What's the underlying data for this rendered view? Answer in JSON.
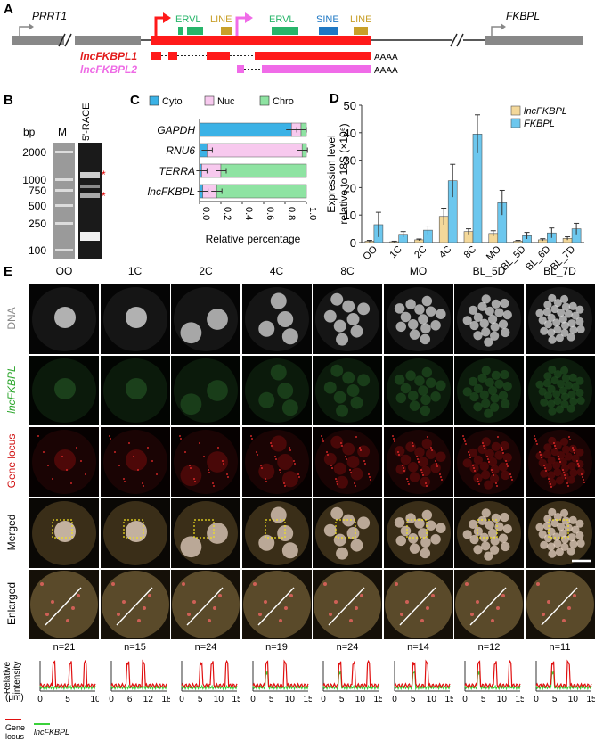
{
  "panels": {
    "A": {
      "letter": "A",
      "gene_left": "PRRT1",
      "gene_right": "FKBPL",
      "repeats": [
        "ERVL",
        "LINE",
        "ERVL",
        "SINE",
        "LINE"
      ],
      "transcripts": [
        {
          "name": "lncFKBPL1",
          "color": "#e21b1b",
          "tail": "AAAA"
        },
        {
          "name": "lncFKBPL2",
          "color": "#ee6be5",
          "tail": "AAAA"
        }
      ],
      "colors": {
        "gene": "#888888",
        "lnc1": "#ff1a1a",
        "lnc2": "#f06be8",
        "ervl": "#27b56a",
        "line": "#c8a02a",
        "sine": "#1f78c4"
      }
    },
    "B": {
      "letter": "B",
      "unit": "bp",
      "lane_m": "M",
      "lane_race": "5'-RACE",
      "ladder": [
        "2000",
        "1000",
        "750",
        "500",
        "250",
        "100"
      ],
      "marks": [
        "*",
        "*"
      ]
    },
    "C": {
      "letter": "C",
      "xlabel": "Relative percentage",
      "legend": [
        "Cyto",
        "Nuc",
        "Chro"
      ],
      "ticks": [
        "0.0",
        "0.2",
        "0.4",
        "0.6",
        "0.8",
        "1.0"
      ]
    },
    "D": {
      "letter": "D",
      "ylabel_line1": "Expression level",
      "ylabel_line2": "relative to 18S (×10⁶)",
      "legend": [
        "lncFKBPL",
        "FKBPL"
      ],
      "yticks": [
        "0",
        "10",
        "20",
        "30",
        "40",
        "50"
      ]
    },
    "E": {
      "letter": "E",
      "columns": [
        "OO",
        "1C",
        "2C",
        "4C",
        "8C",
        "MO",
        "BL_5D",
        "BL_7D"
      ],
      "rows": [
        "DNA",
        "lncFKBPL",
        "Gene locus",
        "Merged",
        "Enlarged"
      ],
      "n_values": [
        "n=21",
        "n=15",
        "n=24",
        "n=19",
        "n=24",
        "n=14",
        "n=12",
        "n=11"
      ],
      "profile_ylabel": "Relative intensity",
      "profile_xunit": "(μm)",
      "profile_xticks": [
        [
          "0",
          "5",
          "10"
        ],
        [
          "0",
          "6",
          "12",
          "18"
        ],
        [
          "0",
          "5",
          "10",
          "15"
        ],
        [
          "0",
          "5",
          "10",
          "15"
        ],
        [
          "0",
          "5",
          "10",
          "15"
        ],
        [
          "0",
          "5",
          "10",
          "15"
        ],
        [
          "0",
          "5",
          "10",
          "15"
        ],
        [
          "0",
          "5",
          "10",
          "15"
        ]
      ],
      "profile_legend": [
        "Gene locus",
        "lncFKBPL"
      ],
      "colors": {
        "gene_locus": "#e01010",
        "lnc": "#3ad13a"
      }
    }
  },
  "chart_data": [
    {
      "type": "bar",
      "panel": "C",
      "orientation": "horizontal-stacked",
      "categories": [
        "GAPDH",
        "RNU6",
        "TERRA",
        "lncFKBPL"
      ],
      "series": [
        {
          "name": "Cyto",
          "values": [
            0.86,
            0.07,
            0.02,
            0.03
          ],
          "color": "#3bb2e6"
        },
        {
          "name": "Nuc",
          "values": [
            0.09,
            0.89,
            0.18,
            0.13
          ],
          "color": "#f7c9ee"
        },
        {
          "name": "Chro",
          "values": [
            0.05,
            0.04,
            0.8,
            0.84
          ],
          "color": "#8ee3a2"
        }
      ],
      "xlim": [
        0,
        1
      ],
      "xlabel": "Relative percentage",
      "legend_position": "top"
    },
    {
      "type": "bar",
      "panel": "D",
      "categories": [
        "OO",
        "1C",
        "2C",
        "4C",
        "8C",
        "MO",
        "BL_5D",
        "BL_6D",
        "BL_7D"
      ],
      "series": [
        {
          "name": "lncFKBPL",
          "values": [
            0.5,
            0.3,
            1.0,
            9.5,
            4.0,
            3.3,
            0.5,
            1.0,
            1.5
          ],
          "errors": [
            0.3,
            0.2,
            0.3,
            3.0,
            1.0,
            1.0,
            0.3,
            0.4,
            0.6
          ],
          "color": "#f3d89a"
        },
        {
          "name": "FKBPL",
          "values": [
            6.5,
            3.0,
            4.5,
            22.5,
            39.5,
            14.5,
            2.5,
            3.5,
            5.0
          ],
          "errors": [
            4.5,
            1.0,
            1.5,
            6.0,
            7.0,
            4.5,
            1.2,
            1.8,
            2.0
          ],
          "color": "#6cc7ee"
        }
      ],
      "ylim": [
        0,
        50
      ],
      "ylabel": "Expression level relative to 18S (×10⁶)",
      "legend_position": "top-right"
    }
  ]
}
